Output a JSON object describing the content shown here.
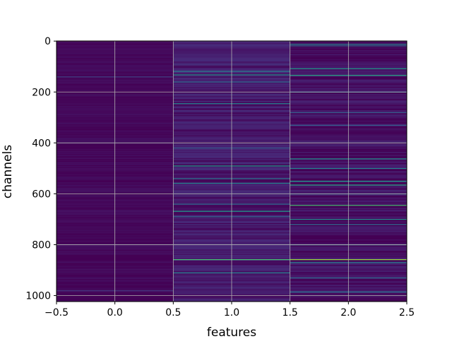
{
  "chart_data": {
    "type": "heatmap",
    "title": "",
    "xlabel": "features",
    "ylabel": "channels",
    "colormap": "viridis",
    "grid": true,
    "n_columns": 3,
    "n_rows": 1024,
    "xlim": [
      -0.5,
      2.5
    ],
    "ylim": [
      1023.5,
      -0.5
    ],
    "x_ticks": [
      -0.5,
      0.0,
      0.5,
      1.0,
      1.5,
      2.0,
      2.5
    ],
    "x_tick_labels": [
      "−0.5",
      "0.0",
      "0.5",
      "1.0",
      "1.5",
      "2.0",
      "2.5"
    ],
    "y_ticks": [
      0,
      200,
      400,
      600,
      800,
      1000
    ],
    "y_tick_labels": [
      "0",
      "200",
      "400",
      "600",
      "800",
      "1000"
    ],
    "value_range": [
      0,
      1
    ],
    "column_baseline_values": [
      0.02,
      0.07,
      0.04
    ],
    "bright_rows": [
      {
        "row": 12,
        "col": 2,
        "value": 0.45
      },
      {
        "row": 18,
        "col": 2,
        "value": 0.35
      },
      {
        "row": 108,
        "col": 2,
        "value": 0.55
      },
      {
        "row": 118,
        "col": 1,
        "value": 0.45
      },
      {
        "row": 132,
        "col": 1,
        "value": 0.5
      },
      {
        "row": 134,
        "col": 2,
        "value": 0.6
      },
      {
        "row": 160,
        "col": 1,
        "value": 0.35
      },
      {
        "row": 200,
        "col": 2,
        "value": 0.35
      },
      {
        "row": 245,
        "col": 1,
        "value": 0.45
      },
      {
        "row": 280,
        "col": 2,
        "value": 0.3
      },
      {
        "row": 330,
        "col": 2,
        "value": 0.3
      },
      {
        "row": 420,
        "col": 1,
        "value": 0.3
      },
      {
        "row": 462,
        "col": 2,
        "value": 0.5
      },
      {
        "row": 490,
        "col": 1,
        "value": 0.55
      },
      {
        "row": 500,
        "col": 2,
        "value": 0.45
      },
      {
        "row": 540,
        "col": 1,
        "value": 0.4
      },
      {
        "row": 550,
        "col": 2,
        "value": 0.55
      },
      {
        "row": 558,
        "col": 1,
        "value": 0.45
      },
      {
        "row": 565,
        "col": 2,
        "value": 0.6
      },
      {
        "row": 600,
        "col": 2,
        "value": 0.35
      },
      {
        "row": 640,
        "col": 1,
        "value": 0.35
      },
      {
        "row": 645,
        "col": 2,
        "value": 0.7
      },
      {
        "row": 668,
        "col": 1,
        "value": 0.55
      },
      {
        "row": 690,
        "col": 1,
        "value": 0.35
      },
      {
        "row": 700,
        "col": 2,
        "value": 0.5
      },
      {
        "row": 720,
        "col": 2,
        "value": 0.35
      },
      {
        "row": 800,
        "col": 2,
        "value": 0.4
      },
      {
        "row": 858,
        "col": 1,
        "value": 0.7
      },
      {
        "row": 858,
        "col": 2,
        "value": 0.85
      },
      {
        "row": 870,
        "col": 2,
        "value": 0.45
      },
      {
        "row": 910,
        "col": 1,
        "value": 0.45
      },
      {
        "row": 930,
        "col": 2,
        "value": 0.35
      },
      {
        "row": 985,
        "col": 2,
        "value": 0.4
      },
      {
        "row": 140,
        "col": 0,
        "value": 0.2
      },
      {
        "row": 980,
        "col": 0,
        "value": 0.15
      }
    ]
  }
}
